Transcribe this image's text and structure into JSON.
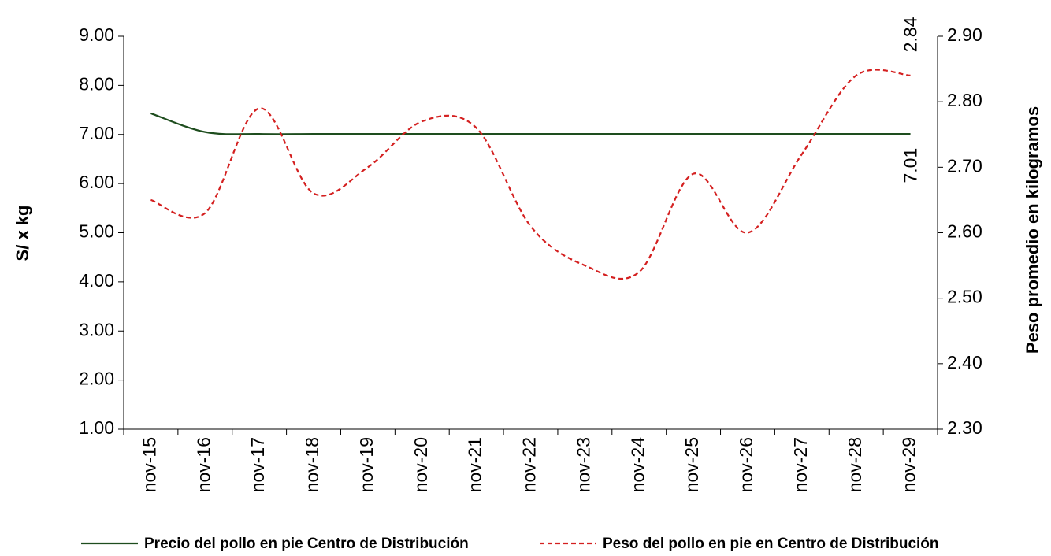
{
  "chart_data": {
    "type": "line",
    "categories": [
      "nov-15",
      "nov-16",
      "nov-17",
      "nov-18",
      "nov-19",
      "nov-20",
      "nov-21",
      "nov-22",
      "nov-23",
      "nov-24",
      "nov-25",
      "nov-26",
      "nov-27",
      "nov-28",
      "nov-29"
    ],
    "y_label": "S/  x  kg",
    "y2_label": "Peso promedio en kilogramos",
    "ylim": [
      1,
      9
    ],
    "yticks": [
      {
        "value": 1,
        "label": "1.00"
      },
      {
        "value": 2,
        "label": "2.00"
      },
      {
        "value": 3,
        "label": "3.00"
      },
      {
        "value": 4,
        "label": "4.00"
      },
      {
        "value": 5,
        "label": "5.00"
      },
      {
        "value": 6,
        "label": "6.00"
      },
      {
        "value": 7,
        "label": "7.00"
      },
      {
        "value": 8,
        "label": "8.00"
      },
      {
        "value": 9,
        "label": "9.00"
      }
    ],
    "y2lim": [
      2.3,
      2.9
    ],
    "y2ticks": [
      {
        "value": 2.3,
        "label": "2.30"
      },
      {
        "value": 2.4,
        "label": "2.40"
      },
      {
        "value": 2.5,
        "label": "2.50"
      },
      {
        "value": 2.6,
        "label": "2.60"
      },
      {
        "value": 2.7,
        "label": "2.70"
      },
      {
        "value": 2.8,
        "label": "2.80"
      },
      {
        "value": 2.9,
        "label": "2.90"
      }
    ],
    "series": [
      {
        "name": "Precio del pollo en pie Centro de Distribución",
        "color": "#1e4d1e",
        "dash": false,
        "values": [
          7.43,
          7.05,
          7.01,
          7.01,
          7.01,
          7.01,
          7.01,
          7.01,
          7.01,
          7.01,
          7.01,
          7.01,
          7.01,
          7.01,
          7.01
        ],
        "value_labels": [
          null,
          null,
          null,
          null,
          null,
          null,
          null,
          null,
          null,
          null,
          null,
          null,
          null,
          null,
          "7.01"
        ]
      },
      {
        "name": "Peso del pollo en pie en Centro de Distribución",
        "color": "#d42020",
        "dash": true,
        "axis": "y2",
        "values": [
          2.65,
          2.63,
          2.79,
          2.66,
          2.7,
          2.77,
          2.76,
          2.61,
          2.55,
          2.54,
          2.69,
          2.6,
          2.72,
          2.84,
          2.84
        ],
        "value_labels": [
          null,
          null,
          null,
          null,
          null,
          null,
          null,
          null,
          null,
          null,
          null,
          null,
          null,
          null,
          "2.84"
        ]
      }
    ]
  }
}
